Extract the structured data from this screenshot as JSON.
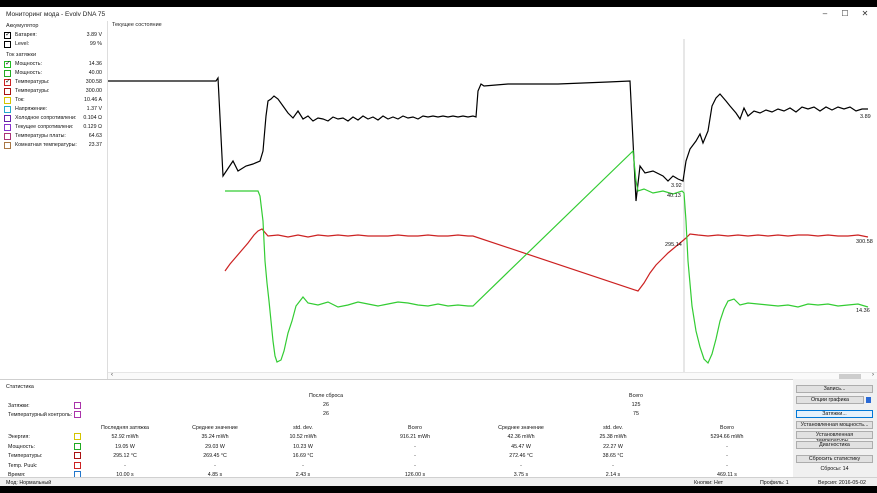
{
  "window": {
    "title": "Мониторинг мода - Evolv DNA 75",
    "min": "–",
    "max": "☐",
    "close": "✕"
  },
  "left": {
    "battery_title": "Аккумулятор",
    "battery_items": [
      {
        "label": "Батарея:",
        "value": "3.89 V",
        "color": "#000000",
        "checked": true
      },
      {
        "label": "Level:",
        "value": "99 %",
        "color": "#000000",
        "checked": false
      }
    ],
    "puff_title": "Ток затяжки",
    "puff_items": [
      {
        "label": "Мощность:",
        "value": "14.36",
        "color": "#22bb22",
        "checked": true
      },
      {
        "label": "Мощность:",
        "value": "40.00",
        "color": "#22aa22",
        "checked": false
      },
      {
        "label": "Температуры:",
        "value": "300.58",
        "color": "#cc2222",
        "checked": true
      },
      {
        "label": "Температуры:",
        "value": "300.00",
        "color": "#aa1111",
        "checked": false
      },
      {
        "label": "Ток:",
        "value": "10.46 A",
        "color": "#d4c400",
        "checked": false
      },
      {
        "label": "Напряжение:",
        "value": "1.37 V",
        "color": "#22aacc",
        "checked": false
      },
      {
        "label": "Холодное сопротивлени:",
        "value": "0.104 Ω",
        "color": "#6622aa",
        "checked": false
      },
      {
        "label": "Текущее сопротивлени:",
        "value": "0.129 Ω",
        "color": "#8833cc",
        "checked": false
      },
      {
        "label": "Температуры платы:",
        "value": "64.63",
        "color": "#aa3377",
        "checked": false
      },
      {
        "label": "Комнатная температуры:",
        "value": "23.37",
        "color": "#aa7744",
        "checked": false
      }
    ]
  },
  "chart": {
    "title": "Текущее состояние",
    "markers": {
      "black_mid": "3.92",
      "green_mid": "40.13",
      "red_mid": "295.14",
      "black_end": "3.89",
      "red_end": "300.58",
      "green_end": "14.36"
    },
    "scroll_left": "‹",
    "scroll_right": "›"
  },
  "stats": {
    "title": "Статистика",
    "puffs_label": "Затяжки:",
    "tc_label": "Температурный контроль:",
    "since_reset": "После сброса",
    "total": "Всего",
    "since_vals": [
      "26",
      "26"
    ],
    "total_vals": [
      "125",
      "75"
    ],
    "col_headers": [
      "Последняя затяжка",
      "Среднее значение",
      "std. dev.",
      "Всего",
      "Среднее значение",
      "std. dev.",
      "Всего"
    ],
    "rows": [
      {
        "label": "Энергия:",
        "color": "#d4c400",
        "cells": [
          "52.92 mWh",
          "35.24 mWh",
          "10.52 mWh",
          "916.21 mWh",
          "42.36 mWh",
          "25.38 mWh",
          "5294.66 mWh"
        ]
      },
      {
        "label": "Мощность:",
        "color": "#22aa22",
        "cells": [
          "19.05 W",
          "29.03 W",
          "10.23 W",
          "-",
          "45.47 W",
          "22.27 W",
          "-"
        ]
      },
      {
        "label": "Температуры:",
        "color": "#aa1111",
        "cells": [
          "295.12 °C",
          "269.45 °C",
          "16.69 °C",
          "-",
          "272.46 °C",
          "38.65 °C",
          "-"
        ]
      },
      {
        "label": "Temp. Puuk:",
        "color": "#cc2222",
        "cells": [
          "-",
          "-",
          "-",
          "-",
          "-",
          "-",
          "-"
        ]
      },
      {
        "label": "Время:",
        "color": "#2277cc",
        "cells": [
          "10.00 s",
          "4.85 s",
          "2.43 s",
          "126.00 s",
          "3.75 s",
          "2.14 s",
          "469.11 s"
        ]
      }
    ]
  },
  "right": {
    "btn_record": "Запись...",
    "btn_graph_options": "Опции графика",
    "btn_puffs": "Затяжки...",
    "btn_set_power": "Установленная мощность...",
    "btn_set_temp": "Установленная температуры...",
    "btn_diagnostics": "Диагностика",
    "btn_reset_stats": "Сбросить статистику",
    "requests": "Сбросы: 14"
  },
  "status": {
    "mode": "Мод: Нормальный",
    "buttons": "Кнопки: Нет",
    "profile": "Профиль: 1",
    "version": "Версия: 2016-05-02"
  }
}
